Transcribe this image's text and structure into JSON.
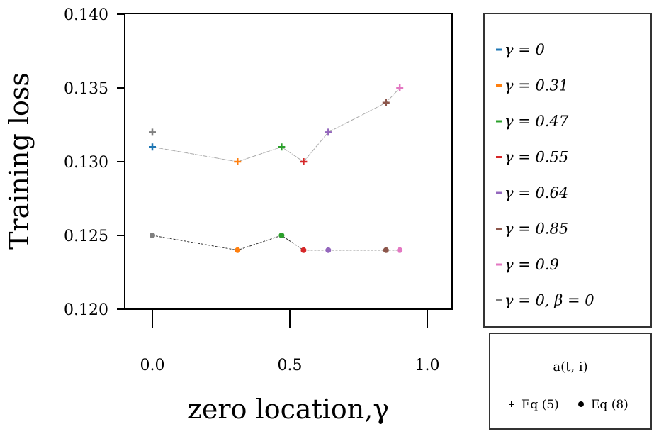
{
  "chart_data": {
    "type": "line",
    "title": "",
    "xlabel": "zero location,γ",
    "ylabel": "Training loss",
    "xlim": [
      -0.1,
      1.1
    ],
    "ylim": [
      0.12,
      0.14
    ],
    "xticks": [
      0.0,
      0.5,
      1.0
    ],
    "xtick_labels": [
      "0.0",
      "0.5",
      "1.0"
    ],
    "yticks": [
      0.12,
      0.125,
      0.13,
      0.135,
      0.14
    ],
    "ytick_labels": [
      "0.120",
      "0.125",
      "0.130",
      "0.135",
      "0.140"
    ],
    "grid": false,
    "x": [
      0,
      0.31,
      0.47,
      0.55,
      0.64,
      0.85,
      0.9
    ],
    "colors": [
      "#1f77b4",
      "#ff7f0e",
      "#2ca02c",
      "#d62728",
      "#9467bd",
      "#8c564b",
      "#e377c2"
    ],
    "series": [
      {
        "name": "Eq (5)",
        "marker": "plus",
        "line_color": "#aaaaaa",
        "values": [
          0.131,
          0.13,
          0.131,
          0.13,
          0.132,
          0.134,
          0.135
        ]
      },
      {
        "name": "Eq (8)",
        "marker": "dot",
        "line_color": "#333333",
        "values": [
          0.125,
          0.124,
          0.125,
          0.124,
          0.124,
          0.124,
          0.124
        ]
      }
    ],
    "baseline": {
      "name": "γ = 0, β = 0",
      "color": "#7f7f7f",
      "x": 0,
      "eq5": 0.132,
      "eq8": 0.125
    },
    "legend": {
      "placement": "right",
      "entries": [
        {
          "label": "γ = 0",
          "color": "#1f77b4"
        },
        {
          "label": "γ = 0.31",
          "color": "#ff7f0e"
        },
        {
          "label": "γ = 0.47",
          "color": "#2ca02c"
        },
        {
          "label": "γ = 0.55",
          "color": "#d62728"
        },
        {
          "label": "γ = 0.64",
          "color": "#9467bd"
        },
        {
          "label": "γ = 0.85",
          "color": "#8c564b"
        },
        {
          "label": "γ = 0.9",
          "color": "#e377c2"
        },
        {
          "label": "γ = 0, β = 0",
          "color": "#7f7f7f"
        }
      ]
    },
    "marker_legend": {
      "title": "a(t, i)",
      "entries": [
        {
          "label": "Eq (5)",
          "marker": "plus"
        },
        {
          "label": "Eq (8)",
          "marker": "dot"
        }
      ]
    }
  }
}
